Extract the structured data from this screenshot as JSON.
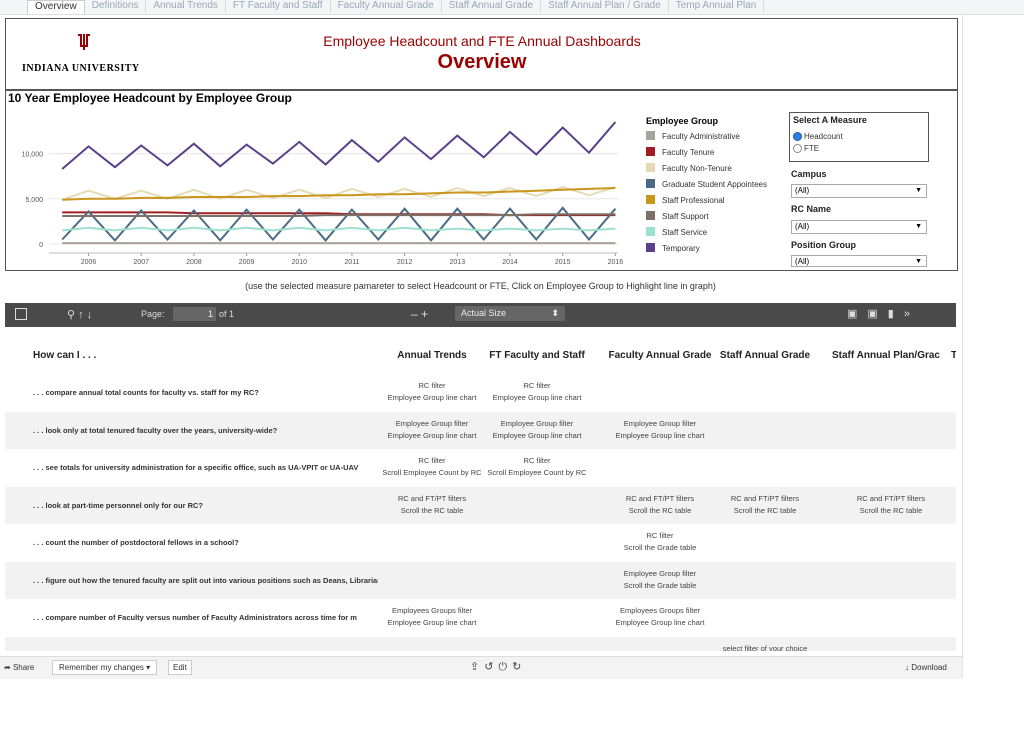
{
  "tabs": [
    "Overview",
    "Definitions",
    "Annual Trends",
    "FT Faculty and Staff",
    "Faculty Annual Grade",
    "Staff Annual Grade",
    "Staff Annual Plan / Grade",
    "Temp Annual Plan"
  ],
  "header": {
    "university": "INDIANA UNIVERSITY",
    "title": "Employee Headcount and FTE Annual Dashboards",
    "subtitle": "Overview"
  },
  "chart_data": {
    "type": "line",
    "title": "10 Year Employee Headcount by Employee Group",
    "x": [
      2005.5,
      2006.0,
      2006.5,
      2007.0,
      2007.5,
      2008.0,
      2008.5,
      2009.0,
      2009.5,
      2010.0,
      2010.5,
      2011.0,
      2011.5,
      2012.0,
      2012.5,
      2013.0,
      2013.5,
      2014.0,
      2014.5,
      2015.0,
      2015.5,
      2016.0
    ],
    "xlim": [
      2005.25,
      2016.05
    ],
    "xticks": [
      2006,
      2007,
      2008,
      2009,
      2010,
      2011,
      2012,
      2013,
      2014,
      2015,
      2016
    ],
    "ylim": [
      -1000,
      14500
    ],
    "yticks": [
      0,
      {
        "value": 5000,
        "label": "5,000"
      },
      {
        "value": 10000,
        "label": "10,000"
      }
    ],
    "grid": true,
    "legend_title": "Employee Group",
    "series": [
      {
        "name": "Faculty Administrative",
        "color": "#a8a39b",
        "values": [
          100,
          100,
          100,
          100,
          100,
          100,
          100,
          100,
          100,
          100,
          100,
          100,
          100,
          100,
          100,
          100,
          100,
          100,
          100,
          100,
          100,
          100
        ]
      },
      {
        "name": "Faculty Tenure",
        "color": "#a11d21",
        "values": [
          3500,
          3500,
          3500,
          3500,
          3500,
          3400,
          3400,
          3400,
          3400,
          3400,
          3400,
          3300,
          3300,
          3300,
          3300,
          3300,
          3300,
          3200,
          3200,
          3200,
          3200,
          3200
        ]
      },
      {
        "name": "Faculty Non-Tenure",
        "color": "#e6dab4",
        "values": [
          4900,
          5900,
          5000,
          5900,
          5000,
          6000,
          5000,
          6000,
          5100,
          6000,
          5100,
          6100,
          5200,
          6100,
          5200,
          6200,
          5300,
          6200,
          5300,
          6300,
          5400,
          6300
        ]
      },
      {
        "name": "Graduate Student Appointees",
        "color": "#4a6a85",
        "values": [
          500,
          3600,
          400,
          3700,
          500,
          3700,
          400,
          3800,
          500,
          3800,
          400,
          3800,
          500,
          3900,
          400,
          3900,
          500,
          3900,
          500,
          4000,
          500,
          3900
        ]
      },
      {
        "name": "Staff Professional",
        "color": "#c9951a",
        "values": [
          4900,
          5000,
          5000,
          5100,
          5100,
          5200,
          5200,
          5200,
          5300,
          5300,
          5400,
          5400,
          5500,
          5500,
          5600,
          5700,
          5700,
          5800,
          5900,
          6000,
          6100,
          6200
        ]
      },
      {
        "name": "Staff Support",
        "color": "#7a7068",
        "values": [
          3100,
          3100,
          3100,
          3100,
          3100,
          3100,
          3100,
          3100,
          3100,
          3100,
          3200,
          3200,
          3200,
          3200,
          3200,
          3200,
          3200,
          3200,
          3300,
          3300,
          3300,
          3300
        ]
      },
      {
        "name": "Staff Service",
        "color": "#9ee0cf",
        "values": [
          1500,
          1800,
          1500,
          1800,
          1500,
          1800,
          1500,
          1800,
          1500,
          1800,
          1500,
          1800,
          1500,
          1800,
          1500,
          1700,
          1500,
          1700,
          1500,
          1700,
          1500,
          1700
        ]
      },
      {
        "name": "Temporary",
        "color": "#5b3f8a",
        "values": [
          8300,
          10800,
          8500,
          10900,
          8700,
          11100,
          8600,
          11000,
          8900,
          11300,
          8800,
          11500,
          9100,
          11800,
          9400,
          12000,
          9600,
          12400,
          9900,
          12900,
          10100,
          13500
        ]
      }
    ]
  },
  "controls": {
    "measure_title": "Select A Measure",
    "measure_options": [
      "Headcount",
      "FTE"
    ],
    "campus_title": "Campus",
    "campus_value": "(All)",
    "rc_title": "RC Name",
    "rc_value": "(All)",
    "position_title": "Position Group",
    "position_value": "(All)"
  },
  "note": "(use the selected measure pamareter to select Headcount or FTE, Click on Employee Group to Highlight line in graph)",
  "toolbar": {
    "page_label": "Page:",
    "page_value": "1",
    "page_total": "of 1",
    "zoom": "Actual Size"
  },
  "table": {
    "columns": [
      "How can I . . .",
      "Annual Trends",
      "FT Faculty and Staff",
      "Faculty Annual Grade",
      "Staff Annual Grade",
      "Staff Annual Plan/Grac",
      "Te"
    ],
    "rows": [
      {
        "question": ". . . compare annual total counts for faculty vs. staff for my RC?",
        "cells": [
          [
            "RC filter",
            "Employee Group line chart"
          ],
          [
            "RC filter",
            "Employee Group line chart"
          ],
          null,
          null,
          null
        ]
      },
      {
        "question": ". . . look only at total tenured faculty over the years, university-wide?",
        "cells": [
          [
            "Employee Group filter",
            "Employee Group line chart"
          ],
          [
            "Employee Group filter",
            "Employee Group line chart"
          ],
          [
            "Employee Group filter",
            "Employee Group line chart"
          ],
          null,
          null
        ]
      },
      {
        "question": ". . . see totals for university administration for a specific office, such as UA-VPIT or UA-UAV",
        "cells": [
          [
            "RC filter",
            "Scroll Employee Count by RC"
          ],
          [
            "RC filter",
            "Scroll Employee Count by RC"
          ],
          null,
          null,
          null
        ]
      },
      {
        "question": ". . .  look at part-time personnel only for our RC?",
        "cells": [
          [
            "RC and FT/PT filters",
            "Scroll the RC table"
          ],
          null,
          [
            "RC and FT/PT filters",
            "Scroll the RC table"
          ],
          [
            "RC and FT/PT filters",
            "Scroll the RC table"
          ],
          [
            "RC and FT/PT filters",
            "Scroll the RC table"
          ]
        ]
      },
      {
        "question": ". . . count the number of postdoctoral fellows in a school?",
        "cells": [
          null,
          null,
          [
            "RC filter",
            "Scroll the Grade table"
          ],
          null,
          null
        ]
      },
      {
        "question": ". . . figure out how the tenured faculty are split out into various positions such as Deans, Librarians, etc?",
        "cells": [
          null,
          null,
          [
            "Employee Group filter",
            "Scroll the Grade table"
          ],
          null,
          null
        ]
      },
      {
        "question": ". . .  compare number of Faculty versus number of Faculty Administrators across time for m",
        "cells": [
          [
            "Employees Groups filter",
            "Employee Group line chart"
          ],
          null,
          [
            "Employees Groups filter",
            "Employee Group line chart"
          ],
          null,
          null
        ]
      },
      {
        "question": null,
        "cells": [
          null,
          null,
          null,
          [
            "select filter of your choice"
          ],
          null
        ]
      }
    ]
  },
  "footer": {
    "share": "Share",
    "remember": "Remember my changes",
    "edit": "Edit",
    "download": "Download"
  }
}
